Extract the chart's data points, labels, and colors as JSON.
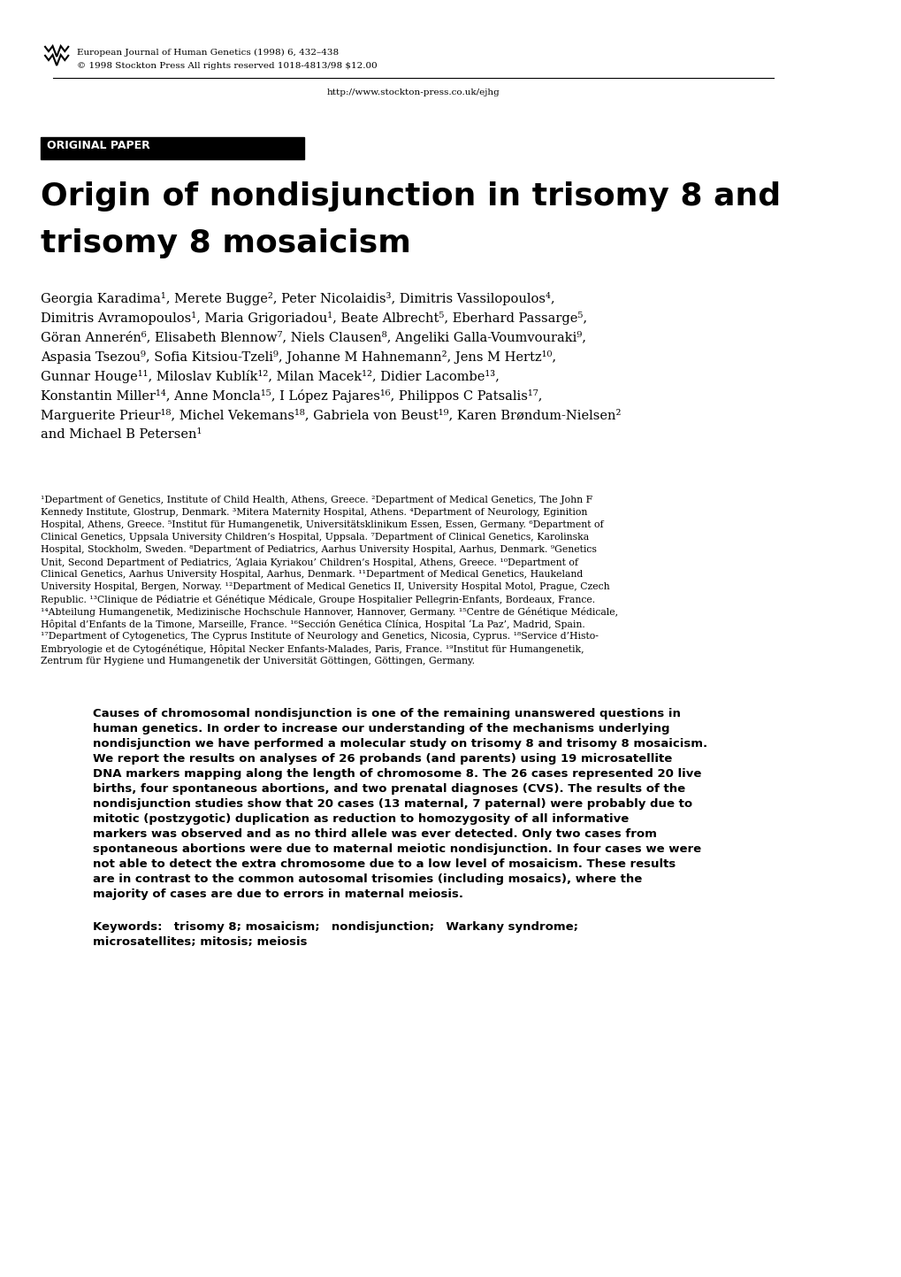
{
  "bg_color": "#ffffff",
  "header_journal": "European Journal of Human Genetics (1998) 6, 432–438",
  "header_copyright": "© 1998 Stockton Press All rights reserved 1018-4813/98 $12.00",
  "header_url": "http://www.stockton-press.co.uk/ejhg",
  "section_label": "ORIGINAL PAPER",
  "title_line1": "Origin of nondisjunction in trisomy 8 and",
  "title_line2": "trisomy 8 mosaicism",
  "authors": "Georgia Karadima¹, Merete Bugge², Peter Nicolaidis³, Dimitris Vassilopoulos⁴,\nDimitris Avramopoulos¹, Maria Grigoriadou¹, Beate Albrecht⁵, Eberhard Passarge⁵,\nGöran Annerén⁶, Elisabeth Blennow⁷, Niels Clausen⁸, Angeliki Galla-Voumvouraki⁹,\nAspasia Tsezou⁹, Sofia Kitsiou-Tzeli⁹, Johanne M Hahnemann², Jens M Hertz¹⁰,\nGunnar Houge¹¹, Miloslav Kublík¹², Milan Macek¹², Didier Lacombe¹³,\nKonstantin Miller¹⁴, Anne Moncla¹⁵, I López Pajares¹⁶, Philippos C Patsalis¹⁷,\nMarguerite Prieur¹⁸, Michel Vekemans¹⁸, Gabriela von Beust¹⁹, Karen Brøndum-Nielsen²\nand Michael B Petersen¹",
  "affiliations": "¹Department of Genetics, Institute of Child Health, Athens, Greece. ²Department of Medical Genetics, The John F Kennedy Institute, Glostrup, Denmark. ³Mitera Maternity Hospital, Athens. ⁴Department of Neurology, Eginition Hospital, Athens, Greece. ⁵Institut für Humangenetik, Universitätsklinikum Essen, Essen, Germany. ⁶Department of Clinical Genetics, Uppsala University Children’s Hospital, Uppsala. ⁷Department of Clinical Genetics, Karolinska Hospital, Stockholm, Sweden. ⁸Department of Pediatrics, Aarhus University Hospital, Aarhus, Denmark. ⁹Genetics Unit, Second Department of Pediatrics, ‘Aglaia Kyriakou’ Children’s Hospital, Athens, Greece. ¹⁰Department of Clinical Genetics, Aarhus University Hospital, Aarhus, Denmark. ¹¹Department of Medical Genetics, Haukeland University Hospital, Bergen, Norway. ¹²Department of Medical Genetics II, University Hospital Motol, Prague, Czech Republic. ¹³Clinique de Pédiatrie et Génétique Médicale, Groupe Hospitalier Pellegrin-Enfants, Bordeaux, France. ¹⁴Abteilung Humangenetik, Medizinische Hochschule Hannover, Hannover, Germany. ¹⁵Centre de Génétique Médicale, Hôpital d’Enfants de la Timone, Marseille, France. ¹⁶Sección Genética Clínica, Hospital ‘La Paz’, Madrid, Spain. ¹⁷Department of Cytogenetics, The Cyprus Institute of Neurology and Genetics, Nicosia, Cyprus. ¹⁸Service d’Histo-Embryologie et de Cytogénétique, Hôpital Necker Enfants-Malades, Paris, France. ¹⁹Institut für Humangenetik, Zentrum für Hygiene und Humangenetik der Universität Göttingen, Göttingen, Germany.",
  "abstract_bold": "Causes of chromosomal nondisjunction is one of the remaining unanswered questions in human genetics. In order to increase our understanding of the mechanisms underlying nondisjunction we have performed a molecular study on trisomy 8 and trisomy 8 mosaicism. We report the results on analyses of 26 probands (and parents) using 19 microsatellite DNA markers mapping along the length of chromosome 8. The 26 cases represented 20 live births, four spontaneous abortions, and two prenatal diagnoses (CVS). The results of the nondisjunction studies show that 20 cases (13 maternal, 7 paternal) were probably due to mitotic (postzygotic) duplication as reduction to homozygosity of all informative markers was observed and as no third allele was ever detected. Only two cases from spontaneous abortions were due to maternal meiotic nondisjunction. In four cases we were not able to detect the extra chromosome due to a low level of mosaicism. These results are in contrast to the common autosomal trisomies (including mosaics), where the majority of cases are due to errors in maternal meiosis.",
  "keywords": "Keywords: trisomy 8; mosaicism; nondisjunction; Warkany syndrome;\nmicrosatellites; mitosis; meiosis"
}
